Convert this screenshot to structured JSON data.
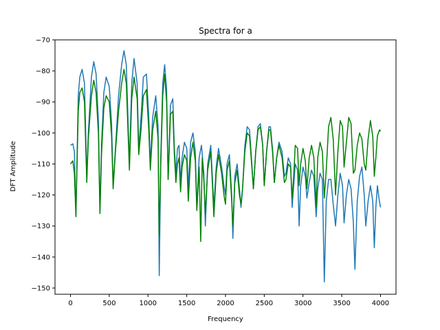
{
  "chart_data": {
    "type": "line",
    "title": "Spectra for a",
    "xlabel": "Frequency",
    "ylabel": "DFT Amplitude",
    "xlim": [
      -200,
      4200
    ],
    "ylim": [
      -152,
      -70
    ],
    "xticks": [
      0,
      500,
      1000,
      1500,
      2000,
      2500,
      3000,
      3500,
      4000
    ],
    "yticks": [
      -150,
      -140,
      -130,
      -120,
      -110,
      -100,
      -90,
      -80,
      -70
    ],
    "grid": false,
    "series": [
      {
        "color": "#1f77b4",
        "points": [
          [
            0,
            -104
          ],
          [
            30,
            -103.5
          ],
          [
            50,
            -106
          ],
          [
            70,
            -126.5
          ],
          [
            80,
            -114
          ],
          [
            100,
            -88
          ],
          [
            120,
            -82
          ],
          [
            150,
            -79.5
          ],
          [
            180,
            -84
          ],
          [
            210,
            -114
          ],
          [
            230,
            -100
          ],
          [
            270,
            -82
          ],
          [
            300,
            -77
          ],
          [
            330,
            -81
          ],
          [
            360,
            -96
          ],
          [
            380,
            -125
          ],
          [
            400,
            -104
          ],
          [
            430,
            -87
          ],
          [
            460,
            -82
          ],
          [
            500,
            -85
          ],
          [
            530,
            -97
          ],
          [
            550,
            -117
          ],
          [
            580,
            -105
          ],
          [
            620,
            -88
          ],
          [
            660,
            -78
          ],
          [
            690,
            -73.5
          ],
          [
            720,
            -78
          ],
          [
            760,
            -110
          ],
          [
            790,
            -84
          ],
          [
            820,
            -76
          ],
          [
            860,
            -84
          ],
          [
            880,
            -105
          ],
          [
            910,
            -95
          ],
          [
            940,
            -82
          ],
          [
            980,
            -81
          ],
          [
            1010,
            -95
          ],
          [
            1030,
            -110
          ],
          [
            1060,
            -95
          ],
          [
            1100,
            -88
          ],
          [
            1130,
            -98
          ],
          [
            1145,
            -146
          ],
          [
            1165,
            -108
          ],
          [
            1190,
            -84
          ],
          [
            1215,
            -78
          ],
          [
            1240,
            -86
          ],
          [
            1260,
            -115
          ],
          [
            1290,
            -91
          ],
          [
            1320,
            -89
          ],
          [
            1340,
            -105
          ],
          [
            1360,
            -113
          ],
          [
            1380,
            -105
          ],
          [
            1400,
            -104
          ],
          [
            1420,
            -116
          ],
          [
            1440,
            -108
          ],
          [
            1470,
            -103
          ],
          [
            1500,
            -105
          ],
          [
            1520,
            -118
          ],
          [
            1550,
            -103
          ],
          [
            1580,
            -100
          ],
          [
            1610,
            -106
          ],
          [
            1630,
            -124
          ],
          [
            1660,
            -108
          ],
          [
            1690,
            -104
          ],
          [
            1720,
            -113
          ],
          [
            1740,
            -130
          ],
          [
            1770,
            -110
          ],
          [
            1810,
            -104
          ],
          [
            1830,
            -114
          ],
          [
            1850,
            -124
          ],
          [
            1880,
            -111
          ],
          [
            1910,
            -105
          ],
          [
            1950,
            -111
          ],
          [
            1980,
            -117
          ],
          [
            2000,
            -120
          ],
          [
            2020,
            -110
          ],
          [
            2050,
            -107
          ],
          [
            2080,
            -120
          ],
          [
            2095,
            -134
          ],
          [
            2120,
            -114
          ],
          [
            2150,
            -110
          ],
          [
            2180,
            -118
          ],
          [
            2200,
            -124
          ],
          [
            2220,
            -118
          ],
          [
            2250,
            -104
          ],
          [
            2280,
            -98
          ],
          [
            2310,
            -99
          ],
          [
            2340,
            -110
          ],
          [
            2360,
            -118
          ],
          [
            2390,
            -106
          ],
          [
            2420,
            -98
          ],
          [
            2450,
            -97
          ],
          [
            2480,
            -104
          ],
          [
            2500,
            -117
          ],
          [
            2530,
            -106
          ],
          [
            2560,
            -98
          ],
          [
            2580,
            -98
          ],
          [
            2610,
            -106
          ],
          [
            2630,
            -116
          ],
          [
            2660,
            -108
          ],
          [
            2690,
            -103
          ],
          [
            2730,
            -106
          ],
          [
            2760,
            -114
          ],
          [
            2780,
            -113
          ],
          [
            2810,
            -108
          ],
          [
            2840,
            -110
          ],
          [
            2860,
            -124
          ],
          [
            2880,
            -117
          ],
          [
            2900,
            -110
          ],
          [
            2930,
            -112
          ],
          [
            2950,
            -130
          ],
          [
            2970,
            -117
          ],
          [
            3000,
            -111
          ],
          [
            3030,
            -114
          ],
          [
            3050,
            -121
          ],
          [
            3080,
            -116
          ],
          [
            3110,
            -112
          ],
          [
            3140,
            -114
          ],
          [
            3170,
            -127
          ],
          [
            3190,
            -118
          ],
          [
            3220,
            -113
          ],
          [
            3250,
            -115
          ],
          [
            3275,
            -148
          ],
          [
            3300,
            -122
          ],
          [
            3330,
            -115
          ],
          [
            3360,
            -115
          ],
          [
            3390,
            -123
          ],
          [
            3420,
            -130
          ],
          [
            3450,
            -120
          ],
          [
            3480,
            -113
          ],
          [
            3510,
            -117
          ],
          [
            3530,
            -129
          ],
          [
            3560,
            -120
          ],
          [
            3590,
            -115
          ],
          [
            3620,
            -118
          ],
          [
            3650,
            -129
          ],
          [
            3670,
            -144
          ],
          [
            3700,
            -122
          ],
          [
            3730,
            -114
          ],
          [
            3760,
            -111
          ],
          [
            3790,
            -120
          ],
          [
            3810,
            -130
          ],
          [
            3840,
            -122
          ],
          [
            3870,
            -117
          ],
          [
            3900,
            -122
          ],
          [
            3920,
            -137
          ],
          [
            3940,
            -124
          ],
          [
            3960,
            -117
          ],
          [
            3980,
            -121
          ],
          [
            4000,
            -124
          ]
        ]
      },
      {
        "color": "#008000",
        "points": [
          [
            0,
            -110
          ],
          [
            30,
            -109
          ],
          [
            50,
            -113
          ],
          [
            70,
            -127
          ],
          [
            80,
            -115
          ],
          [
            100,
            -93
          ],
          [
            120,
            -87
          ],
          [
            150,
            -85.5
          ],
          [
            180,
            -90
          ],
          [
            210,
            -116
          ],
          [
            230,
            -102
          ],
          [
            270,
            -88
          ],
          [
            300,
            -83
          ],
          [
            330,
            -87
          ],
          [
            360,
            -100
          ],
          [
            380,
            -126
          ],
          [
            400,
            -107
          ],
          [
            430,
            -92
          ],
          [
            460,
            -88
          ],
          [
            500,
            -90
          ],
          [
            530,
            -101
          ],
          [
            550,
            -118
          ],
          [
            580,
            -106
          ],
          [
            620,
            -93
          ],
          [
            660,
            -84
          ],
          [
            690,
            -79.5
          ],
          [
            720,
            -84
          ],
          [
            760,
            -112
          ],
          [
            790,
            -89
          ],
          [
            820,
            -82
          ],
          [
            860,
            -89
          ],
          [
            880,
            -107
          ],
          [
            910,
            -99
          ],
          [
            940,
            -88
          ],
          [
            980,
            -86
          ],
          [
            1010,
            -99
          ],
          [
            1030,
            -112
          ],
          [
            1060,
            -99
          ],
          [
            1100,
            -93
          ],
          [
            1130,
            -102
          ],
          [
            1145,
            -133
          ],
          [
            1165,
            -110
          ],
          [
            1190,
            -88
          ],
          [
            1215,
            -81
          ],
          [
            1240,
            -90
          ],
          [
            1260,
            -115
          ],
          [
            1290,
            -94
          ],
          [
            1320,
            -93
          ],
          [
            1340,
            -107
          ],
          [
            1360,
            -116
          ],
          [
            1380,
            -110
          ],
          [
            1400,
            -108
          ],
          [
            1420,
            -119
          ],
          [
            1440,
            -111
          ],
          [
            1470,
            -107
          ],
          [
            1500,
            -109
          ],
          [
            1520,
            -122
          ],
          [
            1550,
            -108
          ],
          [
            1580,
            -103
          ],
          [
            1610,
            -109
          ],
          [
            1630,
            -125
          ],
          [
            1660,
            -111
          ],
          [
            1680,
            -135
          ],
          [
            1700,
            -108
          ],
          [
            1720,
            -115
          ],
          [
            1740,
            -126
          ],
          [
            1770,
            -112
          ],
          [
            1810,
            -106
          ],
          [
            1830,
            -116
          ],
          [
            1850,
            -127
          ],
          [
            1880,
            -113
          ],
          [
            1910,
            -107
          ],
          [
            1950,
            -113
          ],
          [
            1980,
            -120
          ],
          [
            2000,
            -123
          ],
          [
            2020,
            -112
          ],
          [
            2050,
            -109
          ],
          [
            2080,
            -122
          ],
          [
            2095,
            -130
          ],
          [
            2120,
            -116
          ],
          [
            2150,
            -112
          ],
          [
            2180,
            -120
          ],
          [
            2200,
            -123
          ],
          [
            2220,
            -118
          ],
          [
            2250,
            -106
          ],
          [
            2280,
            -100
          ],
          [
            2310,
            -101
          ],
          [
            2340,
            -111
          ],
          [
            2360,
            -118
          ],
          [
            2390,
            -106
          ],
          [
            2420,
            -99
          ],
          [
            2450,
            -98
          ],
          [
            2480,
            -104
          ],
          [
            2500,
            -117
          ],
          [
            2530,
            -106
          ],
          [
            2560,
            -99
          ],
          [
            2580,
            -99
          ],
          [
            2610,
            -107
          ],
          [
            2630,
            -116
          ],
          [
            2660,
            -108
          ],
          [
            2690,
            -104
          ],
          [
            2730,
            -108
          ],
          [
            2760,
            -116
          ],
          [
            2780,
            -115
          ],
          [
            2810,
            -110
          ],
          [
            2840,
            -111
          ],
          [
            2860,
            -121
          ],
          [
            2880,
            -114
          ],
          [
            2900,
            -104
          ],
          [
            2930,
            -105
          ],
          [
            2950,
            -117
          ],
          [
            2970,
            -110
          ],
          [
            3000,
            -105
          ],
          [
            3030,
            -109
          ],
          [
            3050,
            -118
          ],
          [
            3080,
            -108
          ],
          [
            3110,
            -104
          ],
          [
            3140,
            -108
          ],
          [
            3170,
            -124
          ],
          [
            3190,
            -108
          ],
          [
            3220,
            -103
          ],
          [
            3250,
            -106
          ],
          [
            3275,
            -121
          ],
          [
            3300,
            -112
          ],
          [
            3330,
            -98
          ],
          [
            3360,
            -95
          ],
          [
            3390,
            -102
          ],
          [
            3420,
            -120
          ],
          [
            3450,
            -106
          ],
          [
            3480,
            -96
          ],
          [
            3510,
            -98
          ],
          [
            3530,
            -111
          ],
          [
            3560,
            -103
          ],
          [
            3590,
            -95
          ],
          [
            3620,
            -97
          ],
          [
            3650,
            -113
          ],
          [
            3670,
            -112
          ],
          [
            3700,
            -104
          ],
          [
            3730,
            -100
          ],
          [
            3760,
            -102
          ],
          [
            3790,
            -110
          ],
          [
            3810,
            -112
          ],
          [
            3840,
            -102
          ],
          [
            3870,
            -96
          ],
          [
            3900,
            -101
          ],
          [
            3920,
            -114
          ],
          [
            3940,
            -108
          ],
          [
            3960,
            -101
          ],
          [
            3980,
            -99.5
          ],
          [
            3990,
            -99
          ],
          [
            4000,
            -99.5
          ]
        ]
      }
    ]
  }
}
